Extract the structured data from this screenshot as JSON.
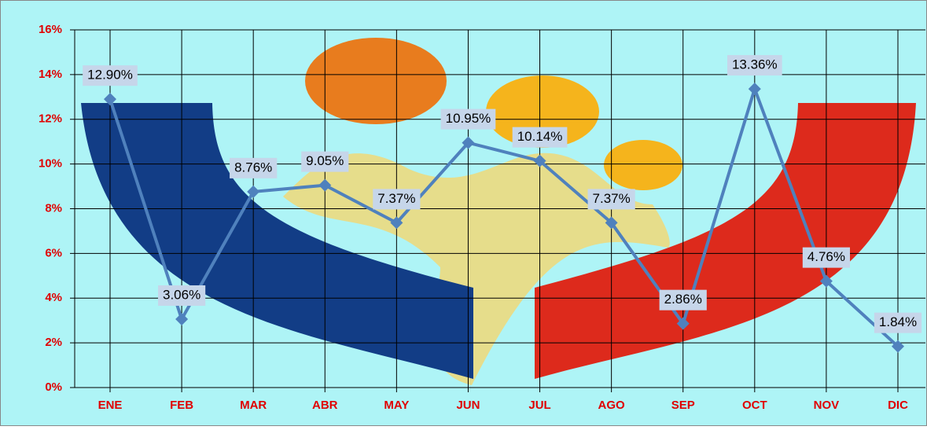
{
  "chart_data": {
    "type": "line",
    "categories": [
      "ENE",
      "FEB",
      "MAR",
      "ABR",
      "MAY",
      "JUN",
      "JUL",
      "AGO",
      "SEP",
      "OCT",
      "NOV",
      "DIC"
    ],
    "values": [
      12.9,
      3.06,
      8.76,
      9.05,
      7.37,
      10.95,
      10.14,
      7.37,
      2.86,
      13.36,
      4.76,
      1.84
    ],
    "value_labels": [
      "12.90%",
      "3.06%",
      "8.76%",
      "9.05%",
      "7.37%",
      "10.95%",
      "10.14%",
      "7.37%",
      "2.86%",
      "13.36%",
      "4.76%",
      "1.84%"
    ],
    "color": "#4f81bd",
    "ylim": [
      0,
      16
    ],
    "yticks": [
      {
        "value": 0,
        "label": "0%"
      },
      {
        "value": 2,
        "label": "2%"
      },
      {
        "value": 4,
        "label": "4%"
      },
      {
        "value": 6,
        "label": "6%"
      },
      {
        "value": 8,
        "label": "8%"
      },
      {
        "value": 10,
        "label": "10%"
      },
      {
        "value": 12,
        "label": "12%"
      },
      {
        "value": 14,
        "label": "14%"
      },
      {
        "value": 16,
        "label": "16%"
      }
    ],
    "grid": true
  }
}
